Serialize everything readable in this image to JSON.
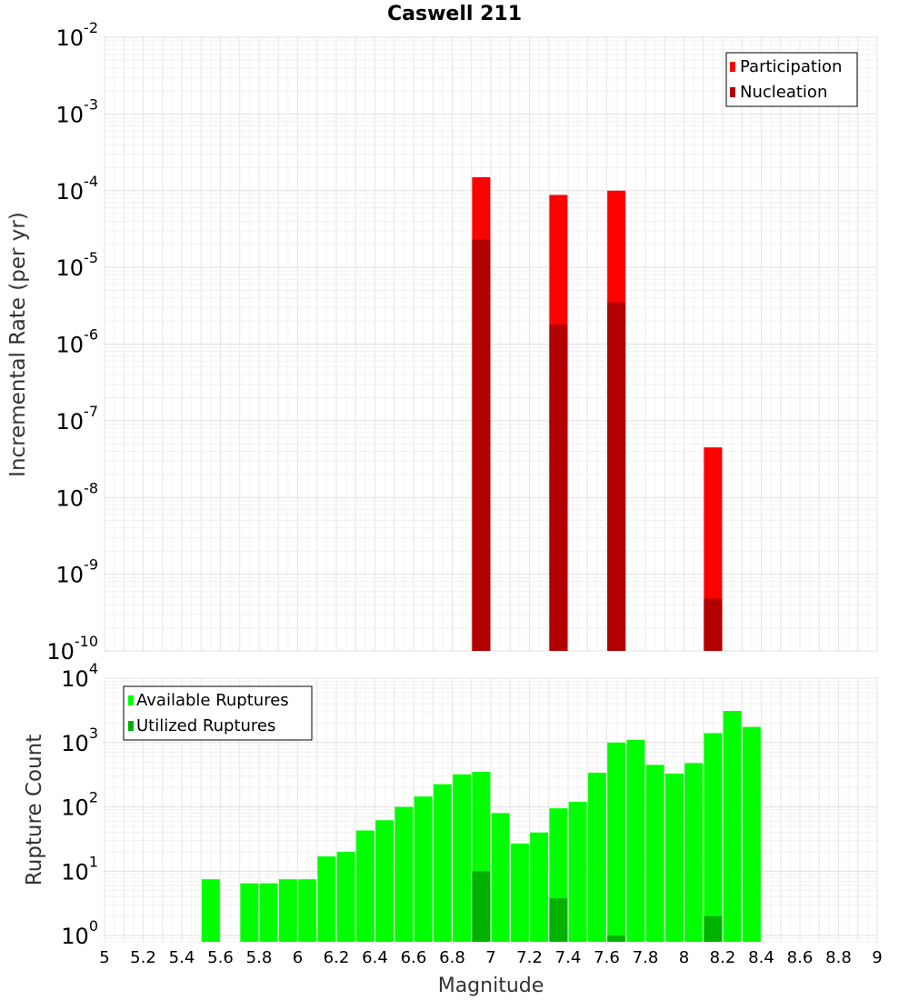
{
  "chart_data": [
    {
      "type": "bar",
      "title": "Caswell 211",
      "ylabel": "Incremental Rate (per yr)",
      "yscale": "log",
      "ylim": [
        1e-10,
        0.01
      ],
      "xlim": [
        5,
        9
      ],
      "grid": true,
      "legend_position": "top-right",
      "y_ticks": [
        {
          "base": "10",
          "exp": "-10"
        },
        {
          "base": "10",
          "exp": "-9"
        },
        {
          "base": "10",
          "exp": "-8"
        },
        {
          "base": "10",
          "exp": "-7"
        },
        {
          "base": "10",
          "exp": "-6"
        },
        {
          "base": "10",
          "exp": "-5"
        },
        {
          "base": "10",
          "exp": "-4"
        },
        {
          "base": "10",
          "exp": "-3"
        },
        {
          "base": "10",
          "exp": "-2"
        }
      ],
      "series": [
        {
          "name": "Participation",
          "color": "#ff0000",
          "points": [
            [
              6.95,
              0.00015
            ],
            [
              7.35,
              8.8e-05
            ],
            [
              7.65,
              0.0001
            ],
            [
              8.15,
              4.5e-08
            ]
          ]
        },
        {
          "name": "Nucleation",
          "color": "#b20000",
          "points": [
            [
              6.95,
              2.3e-05
            ],
            [
              7.35,
              1.8e-06
            ],
            [
              7.65,
              3.5e-06
            ],
            [
              8.15,
              4.8e-10
            ]
          ]
        }
      ]
    },
    {
      "type": "bar",
      "xlabel": "Magnitude",
      "ylabel": "Rupture Count",
      "yscale": "log",
      "ylim": [
        0.8,
        10000
      ],
      "xlim": [
        5,
        9
      ],
      "grid": true,
      "legend_position": "top-left",
      "x_ticks": [
        "5",
        "5.2",
        "5.4",
        "5.6",
        "5.8",
        "6",
        "6.2",
        "6.4",
        "6.6",
        "6.8",
        "7",
        "7.2",
        "7.4",
        "7.6",
        "7.8",
        "8",
        "8.2",
        "8.4",
        "8.6",
        "8.8",
        "9"
      ],
      "y_ticks": [
        {
          "base": "10",
          "exp": "0"
        },
        {
          "base": "10",
          "exp": "1"
        },
        {
          "base": "10",
          "exp": "2"
        },
        {
          "base": "10",
          "exp": "3"
        },
        {
          "base": "10",
          "exp": "4"
        }
      ],
      "series": [
        {
          "name": "Available Ruptures",
          "color": "#00ff00",
          "points": [
            [
              5.55,
              7.5
            ],
            [
              5.75,
              6.5
            ],
            [
              5.85,
              6.5
            ],
            [
              5.95,
              7.5
            ],
            [
              6.05,
              7.5
            ],
            [
              6.15,
              17
            ],
            [
              6.25,
              20
            ],
            [
              6.35,
              43
            ],
            [
              6.45,
              62
            ],
            [
              6.55,
              100
            ],
            [
              6.65,
              145
            ],
            [
              6.75,
              225
            ],
            [
              6.85,
              320
            ],
            [
              6.95,
              350
            ],
            [
              7.05,
              80
            ],
            [
              7.15,
              27
            ],
            [
              7.25,
              40
            ],
            [
              7.35,
              95
            ],
            [
              7.45,
              120
            ],
            [
              7.55,
              340
            ],
            [
              7.65,
              1000
            ],
            [
              7.75,
              1100
            ],
            [
              7.85,
              450
            ],
            [
              7.95,
              330
            ],
            [
              8.05,
              480
            ],
            [
              8.15,
              1400
            ],
            [
              8.25,
              3100
            ],
            [
              8.35,
              1750
            ]
          ]
        },
        {
          "name": "Utilized Ruptures",
          "color": "#00b200",
          "points": [
            [
              6.95,
              10
            ],
            [
              7.35,
              3.8
            ],
            [
              7.65,
              1.0
            ],
            [
              8.15,
              2.0
            ]
          ]
        }
      ]
    }
  ]
}
